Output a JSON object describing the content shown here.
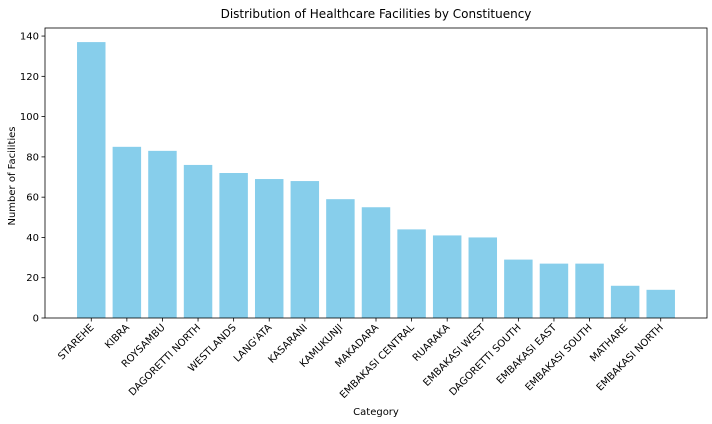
{
  "chart_data": {
    "type": "bar",
    "title": "Distribution of Healthcare Facilities by Constituency",
    "xlabel": "Category",
    "ylabel": "Number of Facilities",
    "categories": [
      "STAREHE",
      "KIBRA",
      "ROYSAMBU",
      "DAGORETTI NORTH",
      "WESTLANDS",
      "LANG'ATA",
      "KASARANI",
      "KAMUKUNJI",
      "MAKADARA",
      "EMBAKASI CENTRAL",
      "RUARAKA",
      "EMBAKASI WEST",
      "DAGORETTI SOUTH",
      "EMBAKASI EAST",
      "EMBAKASI SOUTH",
      "MATHARE",
      "EMBAKASI NORTH"
    ],
    "values": [
      137,
      85,
      83,
      76,
      72,
      69,
      68,
      59,
      55,
      44,
      41,
      40,
      29,
      27,
      27,
      16,
      14
    ],
    "ylim": [
      0,
      144
    ],
    "yticks": [
      0,
      20,
      40,
      60,
      80,
      100,
      120,
      140
    ],
    "bar_color": "#87CEEB",
    "grid": false,
    "legend": "none"
  }
}
